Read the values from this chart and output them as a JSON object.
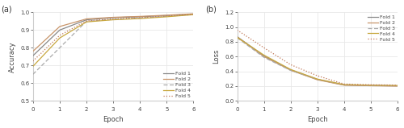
{
  "acc": {
    "fold1": [
      0.755,
      0.9,
      0.958,
      0.97,
      0.975,
      0.982,
      0.99
    ],
    "fold2": [
      0.78,
      0.92,
      0.963,
      0.972,
      0.977,
      0.984,
      0.992
    ],
    "fold3": [
      0.65,
      0.8,
      0.95,
      0.96,
      0.968,
      0.978,
      0.988
    ],
    "fold4": [
      0.695,
      0.855,
      0.946,
      0.958,
      0.965,
      0.975,
      0.987
    ],
    "fold5": [
      0.725,
      0.87,
      0.952,
      0.963,
      0.97,
      0.98,
      0.989
    ]
  },
  "loss": {
    "fold1": [
      0.87,
      0.61,
      0.42,
      0.29,
      0.215,
      0.208,
      0.203
    ],
    "fold2": [
      0.865,
      0.6,
      0.415,
      0.285,
      0.212,
      0.205,
      0.2
    ],
    "fold3": [
      0.855,
      0.59,
      0.412,
      0.292,
      0.218,
      0.21,
      0.205
    ],
    "fold4": [
      0.86,
      0.62,
      0.425,
      0.295,
      0.22,
      0.212,
      0.207
    ],
    "fold5": [
      0.96,
      0.72,
      0.49,
      0.34,
      0.228,
      0.218,
      0.213
    ]
  },
  "epochs": [
    0,
    1,
    2,
    3,
    4,
    5,
    6
  ],
  "colors": {
    "fold1": "#888888",
    "fold2": "#c8956a",
    "fold3": "#aaaaaa",
    "fold4": "#c8a840",
    "fold5": "#c07858"
  },
  "linestyles": {
    "fold1": "solid",
    "fold2": "solid",
    "fold3": "dashed",
    "fold4": "solid",
    "fold5": "dotted"
  },
  "acc_ylim": [
    0.5,
    1.0
  ],
  "loss_ylim": [
    0.0,
    1.2
  ],
  "acc_yticks": [
    0.5,
    0.6,
    0.7,
    0.8,
    0.9,
    1.0
  ],
  "loss_yticks": [
    0.0,
    0.2,
    0.4,
    0.6,
    0.8,
    1.0,
    1.2
  ],
  "xlabel": "Epoch",
  "acc_ylabel": "Accuracy",
  "loss_ylabel": "Loss",
  "label_a": "(a)",
  "label_b": "(b)",
  "background_color": "#ffffff",
  "grid_color": "#e8e8e8"
}
